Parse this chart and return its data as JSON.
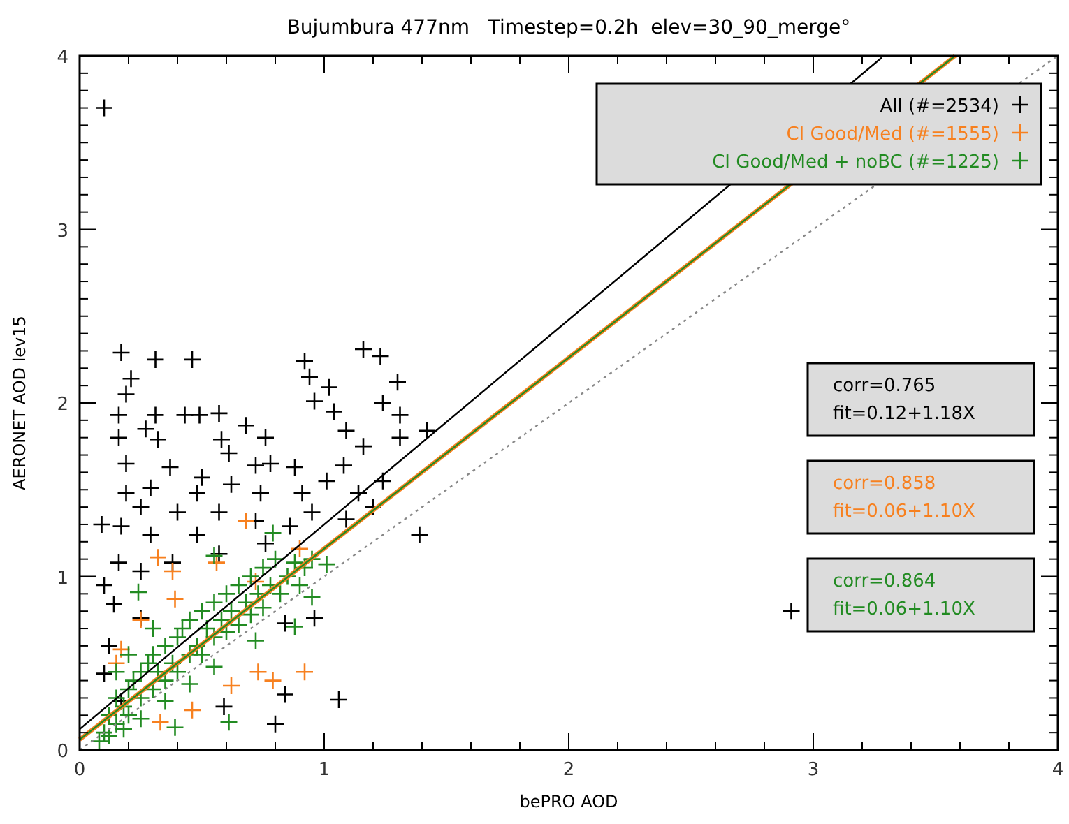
{
  "chart_data": {
    "type": "scatter",
    "title": "Bujumbura 477nm   Timestep=0.2h  elev=30_90_merge°",
    "xlabel": "bePRO AOD",
    "ylabel": "AERONET AOD lev15",
    "xlim": [
      0,
      4
    ],
    "ylim": [
      0,
      4
    ],
    "xticks": [
      0,
      {
        "value": 0.2,
        "label": null
      },
      {
        "value": 0.4,
        "label": null
      },
      {
        "value": 0.6,
        "label": null
      },
      {
        "value": 0.8,
        "label": null
      },
      1,
      {
        "value": 1.2,
        "label": null
      },
      {
        "value": 1.4,
        "label": null
      },
      {
        "value": 1.6,
        "label": null
      },
      {
        "value": 1.8,
        "label": null
      },
      2,
      {
        "value": 2.2,
        "label": null
      },
      {
        "value": 2.4,
        "label": null
      },
      {
        "value": 2.6,
        "label": null
      },
      {
        "value": 2.8,
        "label": null
      },
      3,
      {
        "value": 3.2,
        "label": null
      },
      {
        "value": 3.4,
        "label": null
      },
      {
        "value": 3.6,
        "label": null
      },
      {
        "value": 3.8,
        "label": null
      },
      4
    ],
    "yticks": [
      0,
      {
        "value": 0.1,
        "label": null
      },
      {
        "value": 0.2,
        "label": null
      },
      {
        "value": 0.3,
        "label": null
      },
      {
        "value": 0.4,
        "label": null
      },
      {
        "value": 0.5,
        "label": null
      },
      {
        "value": 0.6,
        "label": null
      },
      {
        "value": 0.7,
        "label": null
      },
      {
        "value": 0.8,
        "label": null
      },
      {
        "value": 0.9,
        "label": null
      },
      1,
      {
        "value": 1.1,
        "label": null
      },
      {
        "value": 1.2,
        "label": null
      },
      {
        "value": 1.3,
        "label": null
      },
      {
        "value": 1.4,
        "label": null
      },
      {
        "value": 1.5,
        "label": null
      },
      {
        "value": 1.6,
        "label": null
      },
      {
        "value": 1.7,
        "label": null
      },
      {
        "value": 1.8,
        "label": null
      },
      {
        "value": 1.9,
        "label": null
      },
      2,
      {
        "value": 2.1,
        "label": null
      },
      {
        "value": 2.2,
        "label": null
      },
      {
        "value": 2.3,
        "label": null
      },
      {
        "value": 2.4,
        "label": null
      },
      {
        "value": 2.5,
        "label": null
      },
      {
        "value": 2.6,
        "label": null
      },
      {
        "value": 2.7,
        "label": null
      },
      {
        "value": 2.8,
        "label": null
      },
      {
        "value": 2.9,
        "label": null
      },
      3,
      {
        "value": 3.1,
        "label": null
      },
      {
        "value": 3.2,
        "label": null
      },
      {
        "value": 3.3,
        "label": null
      },
      {
        "value": 3.4,
        "label": null
      },
      {
        "value": 3.5,
        "label": null
      },
      {
        "value": 3.6,
        "label": null
      },
      {
        "value": 3.7,
        "label": null
      },
      {
        "value": 3.8,
        "label": null
      },
      {
        "value": 3.9,
        "label": null
      },
      4
    ],
    "marker": "cross",
    "grid": false,
    "legend": "top right",
    "annotations": [
      "corr=0.765\nfit=0.12+1.18X",
      "corr=0.858\nfit=0.06+1.10X",
      "corr=0.864\nfit=0.06+1.10X"
    ],
    "series": [
      {
        "name": "All (#=2534)",
        "color": "#000000",
        "x": [
          0.17,
          0.31,
          0.46,
          0.21,
          0.19,
          0.16,
          0.31,
          0.43,
          0.49,
          0.57,
          0.27,
          0.32,
          0.16,
          0.68,
          0.76,
          0.58,
          0.61,
          0.92,
          0.94,
          1.02,
          0.96,
          1.04,
          1.16,
          1.23,
          1.3,
          1.24,
          1.31,
          1.09,
          1.31,
          1.42,
          1.39,
          1.16,
          1.08,
          0.19,
          0.37,
          0.5,
          0.62,
          0.72,
          0.78,
          0.88,
          0.09,
          0.19,
          0.29,
          0.48,
          0.74,
          1.01,
          0.91,
          1.14,
          1.24,
          1.2,
          1.09,
          0.95,
          0.86,
          0.72,
          0.57,
          0.4,
          0.25,
          0.17,
          0.29,
          0.48,
          0.1,
          0.16,
          0.25,
          0.38,
          0.57,
          0.76,
          0.14,
          0.25,
          0.12,
          0.1,
          0.17,
          0.8,
          0.84,
          1.06,
          0.59,
          0.96,
          0.84,
          0.1,
          2.91
        ],
        "values": [
          2.29,
          2.25,
          2.25,
          2.14,
          2.05,
          1.93,
          1.93,
          1.93,
          1.93,
          1.94,
          1.85,
          1.79,
          1.8,
          1.87,
          1.8,
          1.79,
          1.71,
          2.24,
          2.15,
          2.09,
          2.01,
          1.95,
          2.31,
          2.27,
          2.12,
          2.0,
          1.93,
          1.84,
          1.8,
          1.84,
          1.24,
          1.75,
          1.64,
          1.65,
          1.63,
          1.57,
          1.53,
          1.64,
          1.65,
          1.63,
          1.3,
          1.48,
          1.51,
          1.48,
          1.48,
          1.55,
          1.48,
          1.48,
          1.55,
          1.4,
          1.33,
          1.37,
          1.29,
          1.32,
          1.37,
          1.37,
          1.4,
          1.29,
          1.24,
          1.24,
          0.95,
          1.08,
          1.03,
          1.08,
          1.13,
          1.19,
          0.84,
          0.76,
          0.6,
          0.44,
          0.28,
          0.15,
          0.32,
          0.29,
          0.25,
          0.76,
          0.73,
          3.7,
          0.8
        ]
      },
      {
        "name": "CI Good/Med (#=1555)",
        "color": "#f7801f",
        "x": [
          0.68,
          0.32,
          0.38,
          0.56,
          0.25,
          0.17,
          0.15,
          0.92,
          0.73,
          0.79,
          0.62,
          0.46,
          0.33,
          0.72,
          0.9,
          0.39
        ],
        "values": [
          1.32,
          1.11,
          1.03,
          1.08,
          0.75,
          0.58,
          0.5,
          0.45,
          0.45,
          0.4,
          0.37,
          0.23,
          0.16,
          0.97,
          1.16,
          0.87
        ]
      },
      {
        "name": "CI Good/Med + noBC (#=1225)",
        "color": "#228b22",
        "x": [
          0.79,
          1.01,
          0.95,
          0.88,
          0.72,
          0.61,
          0.39,
          0.24,
          0.55,
          0.1,
          0.12,
          0.15,
          0.15,
          0.18,
          0.2,
          0.2,
          0.22,
          0.25,
          0.25,
          0.28,
          0.3,
          0.3,
          0.32,
          0.35,
          0.35,
          0.38,
          0.4,
          0.4,
          0.42,
          0.45,
          0.45,
          0.48,
          0.5,
          0.5,
          0.52,
          0.55,
          0.55,
          0.58,
          0.6,
          0.6,
          0.62,
          0.65,
          0.65,
          0.68,
          0.7,
          0.7,
          0.73,
          0.75,
          0.75,
          0.78,
          0.8,
          0.82,
          0.85,
          0.88,
          0.9,
          0.92,
          0.95,
          0.08,
          0.12,
          0.18,
          0.25,
          0.35,
          0.45,
          0.55,
          0.3,
          0.2,
          0.15
        ],
        "values": [
          1.25,
          1.07,
          0.88,
          0.71,
          0.63,
          0.16,
          0.13,
          0.91,
          1.12,
          0.1,
          0.2,
          0.15,
          0.3,
          0.25,
          0.35,
          0.2,
          0.4,
          0.3,
          0.45,
          0.5,
          0.35,
          0.55,
          0.45,
          0.6,
          0.4,
          0.5,
          0.65,
          0.45,
          0.7,
          0.55,
          0.75,
          0.6,
          0.8,
          0.55,
          0.7,
          0.85,
          0.65,
          0.75,
          0.9,
          0.68,
          0.8,
          0.95,
          0.72,
          0.85,
          1.0,
          0.78,
          0.9,
          1.05,
          0.82,
          0.95,
          1.1,
          0.9,
          1.0,
          1.08,
          0.95,
          1.05,
          1.1,
          0.05,
          0.08,
          0.12,
          0.18,
          0.28,
          0.38,
          0.48,
          0.7,
          0.55,
          0.45
        ]
      },
      {
        "type": "line",
        "color": "#000000",
        "marker": "none",
        "x": [
          0,
          3.28
        ],
        "values": [
          0.12,
          3.99
        ]
      },
      {
        "type": "line",
        "color": "#f7801f",
        "marker": "none",
        "x": [
          0,
          3.58
        ],
        "values": [
          0.06,
          4.0
        ]
      },
      {
        "type": "line",
        "color": "#228b22",
        "marker": "none",
        "x": [
          0,
          3.58
        ],
        "values": [
          0.06,
          4.0
        ]
      },
      {
        "type": "line",
        "color": "#888888",
        "marker": "none",
        "line_style": "dotted",
        "x": [
          0,
          4
        ],
        "values": [
          0,
          4
        ]
      }
    ]
  }
}
